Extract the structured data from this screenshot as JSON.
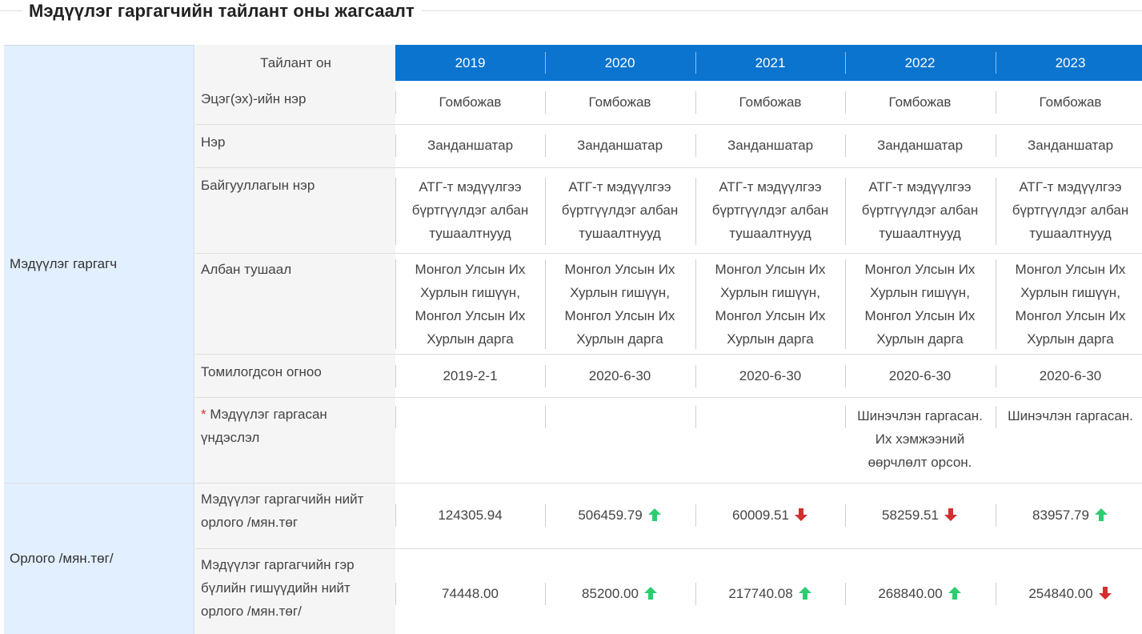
{
  "heading": "Мэдүүлэг гаргагчийн тайлант оны жагсаалт",
  "colors": {
    "header_blue": "#0a74cf",
    "up_arrow": "#2ecc71",
    "down_arrow": "#d32f2f",
    "section_bg": "#e2efff"
  },
  "header_label": "Тайлант он",
  "years": [
    "2019",
    "2020",
    "2021",
    "2022",
    "2023"
  ],
  "sections": {
    "declarant": "Мэдүүлэг гаргагч",
    "income": "Орлого /мян.төг/"
  },
  "rows": {
    "father_name": {
      "label": "Эцэг(эх)-ийн нэр",
      "values": [
        "Гомбожав",
        "Гомбожав",
        "Гомбожав",
        "Гомбожав",
        "Гомбожав"
      ]
    },
    "name": {
      "label": "Нэр",
      "values": [
        "Занданшатар",
        "Занданшатар",
        "Занданшатар",
        "Занданшатар",
        "Занданшатар"
      ]
    },
    "org": {
      "label": "Байгууллагын нэр",
      "values": [
        [
          "АТГ-т мэдүүлгээ",
          "бүртгүүлдэг албан",
          "тушаалтнууд"
        ],
        [
          "АТГ-т мэдүүлгээ",
          "бүртгүүлдэг албан",
          "тушаалтнууд"
        ],
        [
          "АТГ-т мэдүүлгээ",
          "бүртгүүлдэг албан",
          "тушаалтнууд"
        ],
        [
          "АТГ-т мэдүүлгээ",
          "бүртгүүлдэг албан",
          "тушаалтнууд"
        ],
        [
          "АТГ-т мэдүүлгээ",
          "бүртгүүлдэг албан",
          "тушаалтнууд"
        ]
      ]
    },
    "position": {
      "label": "Албан тушаал",
      "values": [
        [
          "Монгол Улсын Их",
          "Хурлын гишүүн,",
          "Монгол Улсын Их",
          "Хурлын дарга"
        ],
        [
          "Монгол Улсын Их",
          "Хурлын гишүүн,",
          "Монгол Улсын Их",
          "Хурлын дарга"
        ],
        [
          "Монгол Улсын Их",
          "Хурлын гишүүн,",
          "Монгол Улсын Их",
          "Хурлын дарга"
        ],
        [
          "Монгол Улсын Их",
          "Хурлын гишүүн,",
          "Монгол Улсын Их",
          "Хурлын дарга"
        ],
        [
          "Монгол Улсын Их",
          "Хурлын гишүүн,",
          "Монгол Улсын Их",
          "Хурлын дарга"
        ]
      ]
    },
    "appointed": {
      "label": "Томилогдсон огноо",
      "values": [
        "2019-2-1",
        "2020-6-30",
        "2020-6-30",
        "2020-6-30",
        "2020-6-30"
      ]
    },
    "basis": {
      "required_mark": "*",
      "label_line1": "Мэдүүлэг гаргасан",
      "label_line2": "үндэслэл",
      "values": [
        [],
        [],
        [],
        [
          "Шинэчлэн гаргасан.",
          "Их хэмжээний",
          "өөрчлөлт орсон."
        ],
        [
          "Шинэчлэн гаргасан."
        ]
      ]
    },
    "total_income": {
      "label_line1": "Мэдүүлэг гаргагчийн нийт",
      "label_line2": "орлого /мян.төг",
      "values": [
        "124305.94",
        "506459.79",
        "60009.51",
        "58259.51",
        "83957.79"
      ],
      "trend": [
        "none",
        "up",
        "down",
        "down",
        "up"
      ]
    },
    "family_income": {
      "label_line1": "Мэдүүлэг гаргагчийн гэр",
      "label_line2": "бүлийн гишүүдийн нийт",
      "label_line3": "орлого /мян.төг/",
      "values": [
        "74448.00",
        "85200.00",
        "217740.08",
        "268840.00",
        "254840.00"
      ],
      "trend": [
        "none",
        "up",
        "up",
        "up",
        "down"
      ]
    }
  }
}
